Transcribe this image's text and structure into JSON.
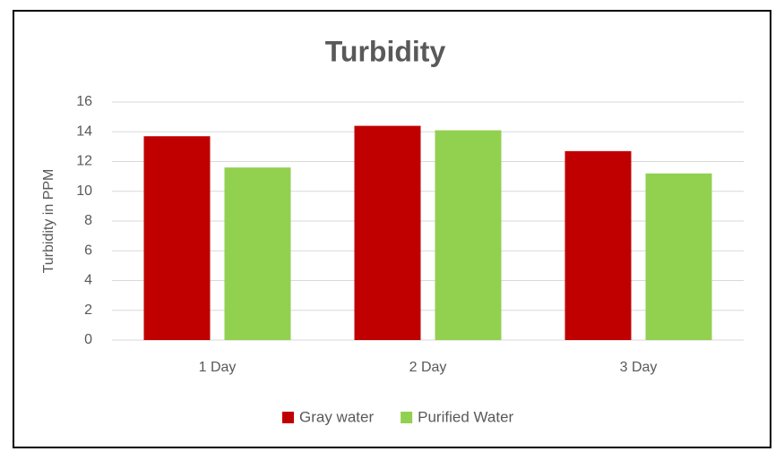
{
  "chart_data": {
    "type": "bar",
    "title": "Turbidity",
    "y_label": "Turbidity in PPM",
    "categories": [
      "1 Day",
      "2 Day",
      "3 Day"
    ],
    "series": [
      {
        "name": "Gray water",
        "color": "#c00000",
        "values": [
          13.7,
          14.4,
          12.7
        ]
      },
      {
        "name": "Purified Water",
        "color": "#92d050",
        "values": [
          11.6,
          14.1,
          11.2
        ]
      }
    ],
    "ylim": [
      0,
      16
    ],
    "yticks": [
      0,
      2,
      4,
      6,
      8,
      10,
      12,
      14,
      16
    ],
    "grid": true,
    "legend": "bottom"
  }
}
